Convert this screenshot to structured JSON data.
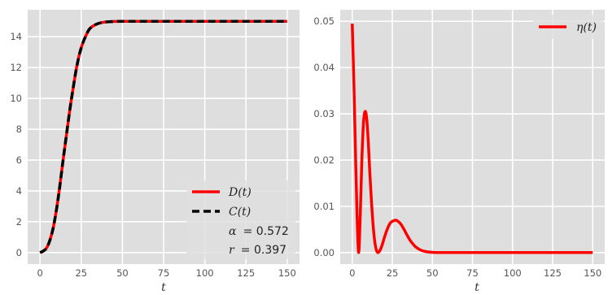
{
  "chart_data": [
    {
      "type": "line",
      "xlabel": "t",
      "ylabel": "",
      "xlim": [
        -7.5,
        157.5
      ],
      "ylim": [
        -0.75,
        15.75
      ],
      "xticks": [
        0,
        25,
        50,
        75,
        100,
        125,
        150
      ],
      "yticks": [
        0,
        2,
        4,
        6,
        8,
        10,
        12,
        14
      ],
      "xtick_labels": [
        "0",
        "25",
        "50",
        "75",
        "100",
        "125",
        "150"
      ],
      "ytick_labels": [
        "0",
        "2",
        "4",
        "6",
        "8",
        "10",
        "12",
        "14"
      ],
      "grid": true,
      "legend_position": "lower-right",
      "series": [
        {
          "name": "D(t)",
          "color": "#ff0000",
          "style": "solid",
          "x": [
            0,
            2,
            4,
            6,
            8,
            10,
            12,
            14,
            16,
            18,
            20,
            22,
            24,
            26,
            28,
            30,
            33,
            36,
            40,
            45,
            50,
            60,
            75,
            100,
            125,
            150
          ],
          "y": [
            0.0,
            0.1,
            0.3,
            0.8,
            1.6,
            2.8,
            4.3,
            6.0,
            7.6,
            9.2,
            10.6,
            11.9,
            12.9,
            13.6,
            14.1,
            14.5,
            14.75,
            14.88,
            14.96,
            14.99,
            15.0,
            15.0,
            15.0,
            15.0,
            15.0,
            15.0
          ]
        },
        {
          "name": "C(t)",
          "color": "#000000",
          "style": "dashed",
          "x": [
            0,
            2,
            4,
            6,
            8,
            10,
            12,
            14,
            16,
            18,
            20,
            22,
            24,
            26,
            28,
            30,
            33,
            36,
            40,
            45,
            50,
            60,
            75,
            100,
            125,
            150
          ],
          "y": [
            0.0,
            0.1,
            0.3,
            0.8,
            1.6,
            2.8,
            4.3,
            6.0,
            7.6,
            9.2,
            10.6,
            11.9,
            12.9,
            13.6,
            14.1,
            14.5,
            14.75,
            14.88,
            14.96,
            14.99,
            15.0,
            15.0,
            15.0,
            15.0,
            15.0,
            15.0
          ]
        }
      ],
      "annotations": [
        "α = 0.572",
        "r = 0.397"
      ]
    },
    {
      "type": "line",
      "xlabel": "t",
      "ylabel": "",
      "xlim": [
        -7.5,
        157.5
      ],
      "ylim": [
        -0.0025,
        0.0525
      ],
      "xticks": [
        0,
        25,
        50,
        75,
        100,
        125,
        150
      ],
      "yticks": [
        0.0,
        0.01,
        0.02,
        0.03,
        0.04,
        0.05
      ],
      "xtick_labels": [
        "0",
        "25",
        "50",
        "75",
        "100",
        "125",
        "150"
      ],
      "ytick_labels": [
        "0.00",
        "0.01",
        "0.02",
        "0.03",
        "0.04",
        "0.05"
      ],
      "grid": true,
      "legend_position": "upper-right",
      "series": [
        {
          "name": "η(t)",
          "color": "#ff0000",
          "style": "solid",
          "x": [
            0,
            1,
            2,
            3,
            4,
            5,
            6,
            7,
            8,
            9,
            10,
            11,
            12,
            13,
            14,
            15,
            16,
            17,
            18,
            19,
            20,
            22,
            24,
            26,
            27,
            28,
            30,
            32,
            34,
            36,
            38,
            40,
            43,
            46,
            50,
            55,
            60,
            75,
            100,
            125,
            150
          ],
          "y": [
            0.0495,
            0.037,
            0.022,
            0.008,
            0.0,
            0.008,
            0.02,
            0.028,
            0.0305,
            0.029,
            0.024,
            0.017,
            0.011,
            0.006,
            0.0025,
            0.0006,
            0.0,
            0.0003,
            0.001,
            0.002,
            0.0032,
            0.0052,
            0.0065,
            0.0069,
            0.007,
            0.0069,
            0.0063,
            0.0052,
            0.0039,
            0.0027,
            0.0018,
            0.0011,
            0.0005,
            0.0002,
            5e-05,
            0.0,
            0.0,
            0.0,
            0.0,
            0.0,
            0.0
          ]
        }
      ],
      "annotations": []
    }
  ],
  "legend_left": {
    "entries": [
      {
        "label": "D(t)",
        "color": "#ff0000",
        "style": "solid"
      },
      {
        "label": "C(t)",
        "color": "#000000",
        "style": "dashed"
      }
    ],
    "params": [
      {
        "symbol": "α",
        "value": "= 0.572"
      },
      {
        "symbol": "r",
        "value": "= 0.397"
      }
    ]
  },
  "legend_right": {
    "entries": [
      {
        "label": "η(t)",
        "color": "#ff0000",
        "style": "solid"
      }
    ]
  },
  "style": {
    "panel_bg": "#dedede",
    "grid_color": "#ffffff"
  }
}
